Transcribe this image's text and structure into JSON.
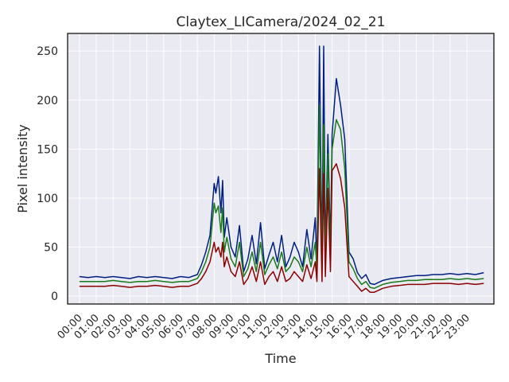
{
  "chart_data": {
    "type": "line",
    "title": "Claytex_LICamera/2024_02_21",
    "xlabel": "Time",
    "ylabel": "Pixel intensity",
    "xlim": [
      -0.7,
      24.6
    ],
    "ylim": [
      -8,
      268
    ],
    "grid": true,
    "legend": "none",
    "x_ticks": [
      "00:00",
      "01:00",
      "02:00",
      "03:00",
      "04:00",
      "05:00",
      "06:00",
      "07:00",
      "08:00",
      "09:00",
      "10:00",
      "11:00",
      "12:00",
      "13:00",
      "14:00",
      "15:00",
      "16:00",
      "17:00",
      "18:00",
      "19:00",
      "20:00",
      "21:00",
      "22:00",
      "23:00"
    ],
    "y_ticks": [
      0,
      50,
      100,
      150,
      200,
      250
    ],
    "x": [
      0,
      0.5,
      1,
      1.5,
      2,
      2.5,
      3,
      3.5,
      4,
      4.5,
      5,
      5.5,
      6,
      6.5,
      7,
      7.25,
      7.5,
      7.75,
      8,
      8.1,
      8.25,
      8.4,
      8.5,
      8.6,
      8.75,
      9,
      9.25,
      9.5,
      9.75,
      10,
      10.25,
      10.5,
      10.75,
      11,
      11.25,
      11.5,
      11.75,
      12,
      12.25,
      12.5,
      12.75,
      13,
      13.25,
      13.5,
      13.75,
      14,
      14.1,
      14.25,
      14.4,
      14.5,
      14.6,
      14.75,
      14.9,
      15,
      15.25,
      15.5,
      15.75,
      16,
      16.25,
      16.5,
      16.75,
      17,
      17.25,
      17.5,
      17.75,
      18,
      18.5,
      19,
      19.5,
      20,
      20.5,
      21,
      21.5,
      22,
      22.5,
      23,
      23.5,
      24
    ],
    "series": [
      {
        "color": "#00207f",
        "values": [
          20,
          19,
          20,
          19,
          20,
          19,
          18,
          20,
          19,
          20,
          19,
          18,
          20,
          19,
          22,
          32,
          45,
          62,
          115,
          105,
          122,
          85,
          118,
          60,
          80,
          50,
          40,
          72,
          25,
          38,
          62,
          33,
          75,
          28,
          42,
          55,
          35,
          62,
          30,
          40,
          55,
          45,
          30,
          68,
          38,
          80,
          30,
          255,
          30,
          255,
          40,
          165,
          50,
          165,
          222,
          195,
          160,
          45,
          38,
          24,
          18,
          22,
          13,
          12,
          14,
          16,
          18,
          19,
          20,
          21,
          21,
          22,
          22,
          23,
          22,
          23,
          22,
          24
        ]
      },
      {
        "color": "#1a7a1a",
        "values": [
          15,
          15,
          15,
          15,
          16,
          15,
          14,
          15,
          15,
          16,
          15,
          14,
          15,
          15,
          18,
          25,
          35,
          50,
          95,
          85,
          92,
          65,
          90,
          45,
          60,
          38,
          30,
          55,
          20,
          28,
          45,
          25,
          55,
          22,
          32,
          40,
          28,
          45,
          25,
          30,
          40,
          35,
          25,
          50,
          30,
          55,
          25,
          195,
          25,
          175,
          32,
          145,
          40,
          150,
          180,
          170,
          130,
          35,
          28,
          18,
          12,
          15,
          9,
          8,
          10,
          12,
          14,
          15,
          16,
          16,
          17,
          17,
          17,
          18,
          17,
          18,
          17,
          18
        ]
      },
      {
        "color": "#8b0000",
        "values": [
          10,
          10,
          10,
          10,
          11,
          10,
          9,
          10,
          10,
          11,
          10,
          9,
          10,
          10,
          13,
          18,
          25,
          35,
          55,
          45,
          50,
          40,
          55,
          30,
          40,
          25,
          20,
          35,
          12,
          18,
          30,
          15,
          35,
          12,
          20,
          25,
          15,
          30,
          15,
          18,
          25,
          20,
          15,
          32,
          18,
          35,
          15,
          130,
          15,
          125,
          20,
          110,
          25,
          128,
          135,
          120,
          90,
          20,
          15,
          10,
          5,
          8,
          4,
          4,
          6,
          8,
          10,
          11,
          12,
          12,
          12,
          13,
          13,
          13,
          12,
          13,
          12,
          13
        ]
      }
    ]
  }
}
